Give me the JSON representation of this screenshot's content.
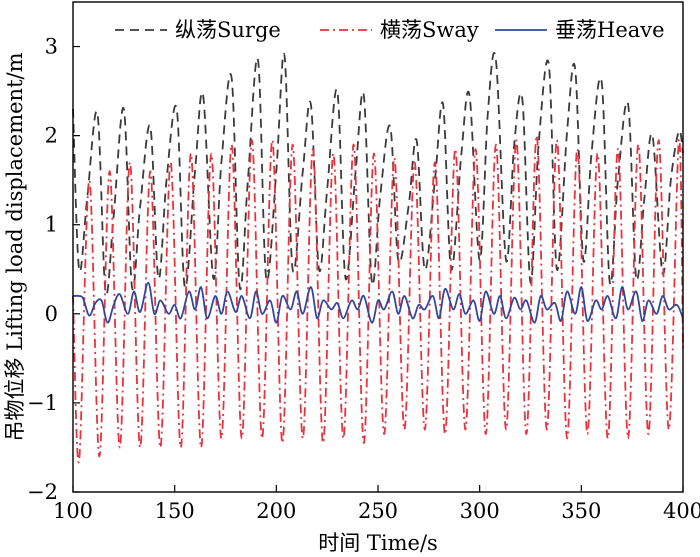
{
  "chart_data": {
    "type": "line",
    "title": "",
    "xlabel": "时间 Time/s",
    "ylabel": "吊物位移 Lifting load displacement/m",
    "xlim": [
      100,
      400
    ],
    "ylim": [
      -2,
      3.5
    ],
    "xticks": [
      100,
      150,
      200,
      250,
      300,
      350,
      400
    ],
    "yticks": [
      -2,
      -1,
      0,
      1,
      2,
      3
    ],
    "legend_position": "top",
    "series": [
      {
        "name": "纵荡Surge",
        "color": "#3a3a3a",
        "style": "dashed",
        "x": [
          100,
          103,
          107,
          112,
          116,
          120,
          125,
          129,
          133,
          138,
          142,
          146,
          151,
          155,
          160,
          164,
          169,
          173,
          178,
          182,
          186,
          191,
          195,
          200,
          204,
          208,
          213,
          217,
          221,
          225,
          230,
          234,
          239,
          243,
          247,
          251,
          256,
          260,
          265,
          269,
          273,
          278,
          282,
          286,
          291,
          295,
          300,
          304,
          308,
          313,
          317,
          321,
          325,
          329,
          334,
          338,
          343,
          347,
          351,
          355,
          360,
          364,
          368,
          373,
          377,
          381,
          385,
          390,
          394,
          398,
          400
        ],
        "values": [
          2.3,
          0.5,
          1.3,
          2.25,
          0.25,
          1.1,
          2.3,
          0.3,
          1.2,
          2.1,
          0.4,
          1.5,
          2.3,
          0.3,
          1.6,
          2.45,
          0.4,
          1.7,
          2.65,
          0.3,
          1.5,
          2.85,
          0.4,
          1.6,
          2.9,
          0.5,
          1.6,
          2.35,
          0.5,
          1.4,
          2.5,
          0.4,
          1.6,
          2.45,
          0.35,
          1.3,
          2.1,
          0.6,
          1.2,
          1.95,
          0.5,
          1.5,
          2.35,
          0.5,
          1.8,
          2.45,
          0.6,
          2.25,
          2.85,
          0.6,
          1.9,
          2.4,
          0.35,
          1.9,
          2.8,
          0.5,
          2.05,
          2.75,
          0.6,
          1.8,
          2.6,
          0.35,
          1.5,
          2.35,
          0.4,
          1.3,
          2.0,
          0.45,
          1.5,
          2.05,
          1.8
        ]
      },
      {
        "name": "横荡Sway",
        "color": "#e8323c",
        "style": "dashdot",
        "x": [
          100,
          103,
          108,
          113,
          118,
          123,
          128,
          133,
          138,
          143,
          148,
          153,
          158,
          163,
          168,
          173,
          178,
          183,
          188,
          193,
          198,
          203,
          208,
          213,
          218,
          223,
          228,
          233,
          238,
          243,
          248,
          253,
          258,
          263,
          268,
          273,
          278,
          283,
          288,
          293,
          298,
          303,
          308,
          313,
          318,
          323,
          328,
          333,
          338,
          343,
          348,
          353,
          358,
          363,
          368,
          373,
          378,
          383,
          388,
          393,
          398,
          400
        ],
        "values": [
          0.2,
          -1.65,
          1.5,
          -1.6,
          1.6,
          -1.5,
          1.7,
          -1.5,
          1.6,
          -1.5,
          1.7,
          -1.5,
          1.8,
          -1.5,
          1.8,
          -1.4,
          1.9,
          -1.4,
          1.95,
          -1.4,
          1.95,
          -1.45,
          1.9,
          -1.4,
          1.85,
          -1.45,
          1.8,
          -1.4,
          1.9,
          -1.45,
          1.8,
          -1.35,
          1.75,
          -1.3,
          1.7,
          -1.3,
          1.7,
          -1.35,
          1.85,
          -1.3,
          1.85,
          -1.35,
          1.9,
          -1.3,
          1.95,
          -1.35,
          2.0,
          -1.3,
          1.95,
          -1.4,
          1.85,
          -1.35,
          1.8,
          -1.4,
          1.85,
          -1.4,
          1.9,
          -1.35,
          1.95,
          -1.3,
          1.95,
          -0.4
        ]
      },
      {
        "name": "垂荡Heave",
        "color": "#34469c",
        "style": "solid",
        "x": [
          100,
          103,
          105,
          108,
          111,
          114,
          117,
          120,
          123,
          127,
          130,
          133,
          137,
          140,
          143,
          147,
          150,
          153,
          157,
          160,
          163,
          166,
          170,
          173,
          176,
          180,
          183,
          187,
          190,
          193,
          197,
          200,
          203,
          207,
          210,
          213,
          217,
          220,
          223,
          227,
          230,
          233,
          237,
          240,
          243,
          247,
          250,
          253,
          257,
          260,
          263,
          267,
          270,
          273,
          277,
          280,
          283,
          287,
          290,
          293,
          297,
          300,
          303,
          307,
          310,
          313,
          317,
          320,
          323,
          327,
          330,
          333,
          337,
          340,
          343,
          347,
          350,
          353,
          357,
          360,
          363,
          367,
          370,
          373,
          377,
          380,
          383,
          387,
          390,
          393,
          397,
          400
        ],
        "values": [
          0.2,
          0.2,
          0.17,
          -0.02,
          0.12,
          0.15,
          -0.1,
          0.1,
          0.22,
          0.0,
          0.25,
          0.02,
          0.35,
          0.0,
          0.15,
          0.0,
          0.1,
          -0.05,
          0.25,
          0.05,
          0.3,
          -0.05,
          0.2,
          0.0,
          0.25,
          0.02,
          0.2,
          -0.05,
          0.25,
          0.0,
          0.15,
          -0.1,
          0.2,
          0.05,
          0.25,
          0.0,
          0.3,
          -0.05,
          0.15,
          0.05,
          0.12,
          -0.05,
          0.15,
          0.05,
          0.2,
          -0.1,
          0.15,
          0.05,
          0.25,
          0.0,
          0.2,
          -0.05,
          0.1,
          0.05,
          0.2,
          -0.05,
          0.28,
          0.05,
          0.22,
          0.0,
          0.15,
          -0.08,
          0.25,
          0.0,
          0.2,
          -0.05,
          0.18,
          0.05,
          0.15,
          -0.1,
          0.2,
          0.05,
          0.12,
          -0.08,
          0.25,
          0.0,
          0.3,
          -0.08,
          0.15,
          0.05,
          0.2,
          -0.05,
          0.3,
          0.05,
          0.25,
          -0.08,
          0.15,
          0.0,
          0.2,
          0.05,
          0.1,
          -0.05
        ]
      }
    ]
  }
}
